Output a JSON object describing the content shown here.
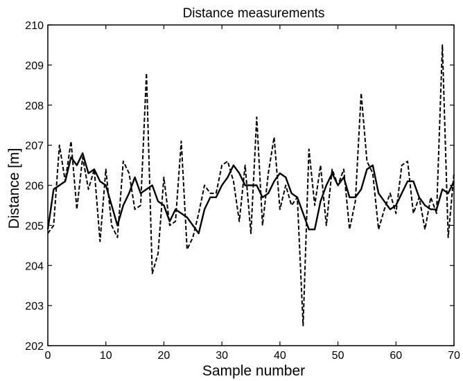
{
  "chart_data": {
    "type": "line",
    "title": "Distance measurements",
    "xlabel": "Sample number",
    "ylabel": "Distance [m]",
    "xlim": [
      0,
      70
    ],
    "ylim": [
      202,
      210
    ],
    "xticks": [
      0,
      10,
      20,
      30,
      40,
      50,
      60,
      70
    ],
    "yticks": [
      202,
      203,
      204,
      205,
      206,
      207,
      208,
      209,
      210
    ],
    "grid": false,
    "legend": "none",
    "x": [
      0,
      1,
      2,
      3,
      4,
      5,
      6,
      7,
      8,
      9,
      10,
      11,
      12,
      13,
      14,
      15,
      16,
      17,
      18,
      19,
      20,
      21,
      22,
      23,
      24,
      25,
      26,
      27,
      28,
      29,
      30,
      31,
      32,
      33,
      34,
      35,
      36,
      37,
      38,
      39,
      40,
      41,
      42,
      43,
      44,
      45,
      46,
      47,
      48,
      49,
      50,
      51,
      52,
      53,
      54,
      55,
      56,
      57,
      58,
      59,
      60,
      61,
      62,
      63,
      64,
      65,
      66,
      67,
      68,
      69,
      70
    ],
    "series": [
      {
        "style": "dashed",
        "color": "#000000",
        "values": [
          204.8,
          205.0,
          207.0,
          206.1,
          207.1,
          205.4,
          206.7,
          205.9,
          206.4,
          204.6,
          206.4,
          205.0,
          204.7,
          206.6,
          206.3,
          205.4,
          205.5,
          208.8,
          203.8,
          204.3,
          206.2,
          205.0,
          205.1,
          207.1,
          204.4,
          204.7,
          205.3,
          206.0,
          205.8,
          205.8,
          206.5,
          206.6,
          206.1,
          205.1,
          206.5,
          204.8,
          207.7,
          205.0,
          206.3,
          207.2,
          205.4,
          206.0,
          205.5,
          205.7,
          202.5,
          206.9,
          205.5,
          206.5,
          205.0,
          206.4,
          206.0,
          206.4,
          204.9,
          205.6,
          208.3,
          206.6,
          206.3,
          204.9,
          205.4,
          205.8,
          205.3,
          206.5,
          206.6,
          205.3,
          205.7,
          204.9,
          205.7,
          205.3,
          209.5,
          204.7,
          206.3
        ]
      },
      {
        "style": "solid",
        "color": "#000000",
        "values": [
          204.9,
          205.9,
          206.0,
          206.1,
          206.7,
          206.5,
          206.8,
          206.3,
          206.4,
          206.1,
          206.0,
          205.5,
          205.0,
          205.5,
          205.8,
          206.2,
          205.8,
          205.9,
          206.0,
          205.6,
          205.5,
          205.1,
          205.4,
          205.3,
          205.2,
          205.0,
          204.8,
          205.4,
          205.7,
          205.7,
          206.0,
          206.2,
          206.5,
          206.3,
          206.0,
          206.0,
          206.0,
          205.7,
          205.8,
          206.1,
          206.3,
          206.2,
          205.8,
          205.7,
          205.3,
          204.9,
          204.9,
          205.6,
          206.0,
          206.3,
          206.0,
          206.2,
          205.7,
          205.7,
          205.9,
          206.4,
          206.5,
          205.8,
          205.6,
          205.4,
          205.5,
          205.8,
          206.1,
          206.1,
          205.7,
          205.5,
          205.4,
          205.4,
          205.9,
          205.8,
          206.1
        ]
      }
    ]
  }
}
